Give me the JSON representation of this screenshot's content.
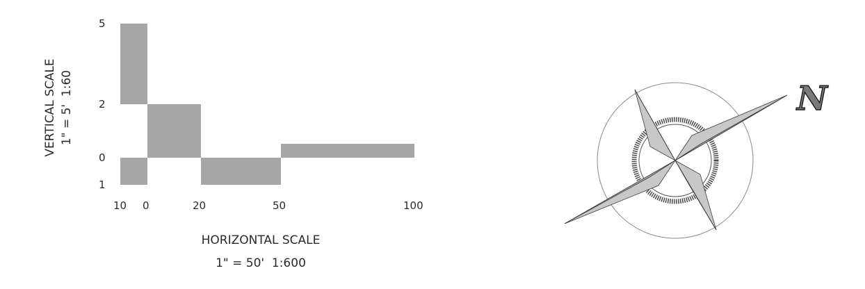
{
  "scale_bar": {
    "vertical": {
      "title": "VERTICAL SCALE",
      "ratio": "1\" = 5'  1:60",
      "tick_labels": [
        "5",
        "2",
        "0",
        "1"
      ]
    },
    "horizontal": {
      "title": "HORIZONTAL SCALE",
      "ratio": "1\" = 50'  1:600",
      "tick_labels": [
        "10",
        "0",
        "20",
        "50",
        "100"
      ]
    },
    "bar_color": "#a6a6a6"
  },
  "compass": {
    "north_label": "N",
    "point_color": "#b9b9b9",
    "ring_color": "#8a8a8a"
  }
}
